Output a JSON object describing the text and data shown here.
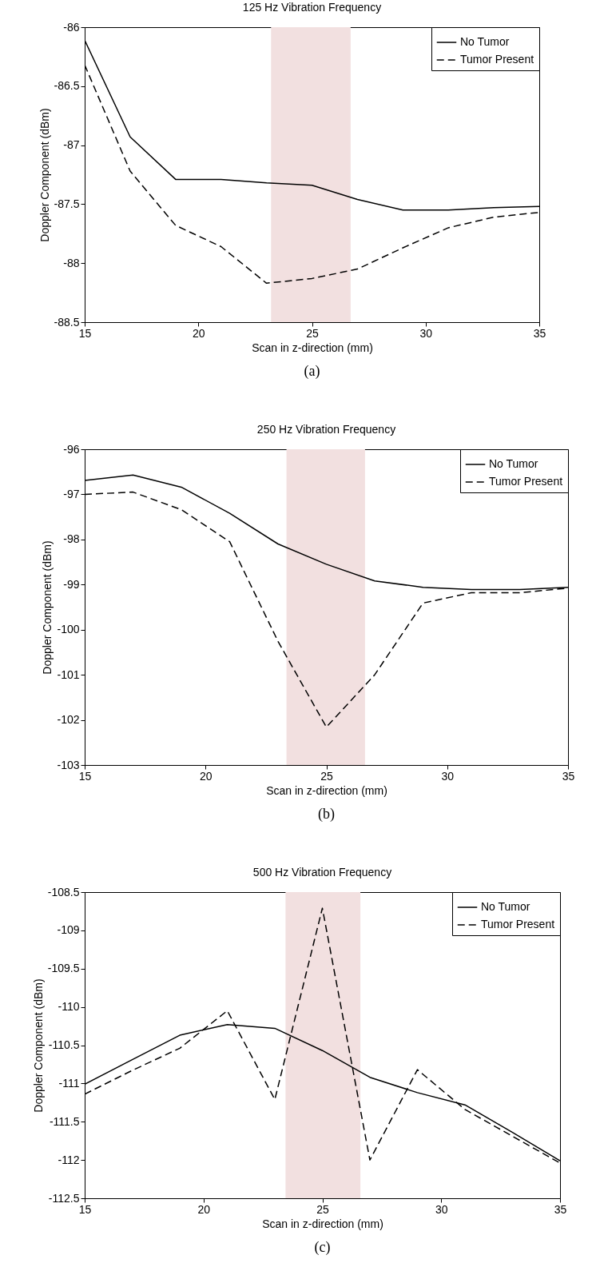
{
  "chart_data": [
    {
      "type": "line",
      "title": "125 Hz Vibration Frequency",
      "xlabel": "Scan in z-direction (mm)",
      "ylabel": "Doppler Component (dBm)",
      "x": [
        15,
        17,
        19,
        21,
        23,
        25,
        27,
        29,
        31,
        33,
        35
      ],
      "xlim": [
        15,
        35
      ],
      "xticks": [
        15,
        20,
        25,
        30,
        35
      ],
      "ylim": [
        -88.5,
        -86
      ],
      "yticks": [
        -88.5,
        -88,
        -87.5,
        -87,
        -86.5,
        -86
      ],
      "legend": "top right",
      "annotations": [
        "(a)"
      ],
      "bands": [
        {
          "axis": "x",
          "from": 23.2,
          "to": 26.7,
          "color": "#f2e0e0"
        }
      ],
      "series": [
        {
          "name": "No Tumor",
          "color": "#000000",
          "line_style": "solid",
          "values": [
            -86.11,
            -86.93,
            -87.29,
            -87.29,
            -87.32,
            -87.34,
            -87.46,
            -87.55,
            -87.55,
            -87.53,
            -87.52
          ]
        },
        {
          "name": "Tumor Present",
          "color": "#000000",
          "line_style": "dashed",
          "values": [
            -86.32,
            -87.22,
            -87.68,
            -87.86,
            -88.17,
            -88.13,
            -88.05,
            -87.87,
            -87.7,
            -87.61,
            -87.57
          ]
        }
      ]
    },
    {
      "type": "line",
      "title": "250 Hz Vibration Frequency",
      "xlabel": "Scan in z-direction (mm)",
      "ylabel": "Doppler Component (dBm)",
      "x": [
        15,
        17,
        19,
        21,
        23,
        25,
        27,
        29,
        31,
        33,
        35
      ],
      "xlim": [
        15,
        35
      ],
      "xticks": [
        15,
        20,
        25,
        30,
        35
      ],
      "ylim": [
        -103,
        -96
      ],
      "yticks": [
        -103,
        -102,
        -101,
        -100,
        -99,
        -98,
        -97,
        -96
      ],
      "legend": "top right",
      "annotations": [
        "(b)"
      ],
      "bands": [
        {
          "axis": "x",
          "from": 23.35,
          "to": 26.6,
          "color": "#f2e0e0"
        }
      ],
      "series": [
        {
          "name": "No Tumor",
          "color": "#000000",
          "line_style": "solid",
          "values": [
            -96.69,
            -96.57,
            -96.84,
            -97.42,
            -98.1,
            -98.55,
            -98.92,
            -99.06,
            -99.11,
            -99.11,
            -99.06
          ]
        },
        {
          "name": "Tumor Present",
          "color": "#000000",
          "line_style": "dashed",
          "values": [
            -97.0,
            -96.95,
            -97.34,
            -98.05,
            -100.26,
            -102.16,
            -101.0,
            -99.41,
            -99.18,
            -99.18,
            -99.08
          ]
        }
      ]
    },
    {
      "type": "line",
      "title": "500 Hz Vibration Frequency",
      "xlabel": "Scan in z-direction (mm)",
      "ylabel": "Doppler Component (dBm)",
      "x": [
        15,
        17,
        19,
        21,
        23,
        25,
        27,
        29,
        31,
        33,
        35
      ],
      "xlim": [
        15,
        35
      ],
      "xticks": [
        15,
        20,
        25,
        30,
        35
      ],
      "ylim": [
        -112.5,
        -108.5
      ],
      "yticks": [
        -112.5,
        -112,
        -111.5,
        -111,
        -110.5,
        -110,
        -109.5,
        -109,
        -108.5
      ],
      "legend": "top right",
      "annotations": [
        "(c)"
      ],
      "bands": [
        {
          "axis": "x",
          "from": 23.45,
          "to": 26.6,
          "color": "#f2e0e0"
        }
      ],
      "series": [
        {
          "name": "No Tumor",
          "color": "#000000",
          "line_style": "solid",
          "values": [
            -111.01,
            -110.69,
            -110.37,
            -110.23,
            -110.28,
            -110.57,
            -110.92,
            -111.12,
            -111.28,
            -111.64,
            -112.01
          ]
        },
        {
          "name": "Tumor Present",
          "color": "#000000",
          "line_style": "dashed",
          "values": [
            -111.14,
            -110.83,
            -110.54,
            -110.05,
            -111.21,
            -108.71,
            -112.0,
            -110.82,
            -111.34,
            -111.69,
            -112.04
          ]
        }
      ]
    }
  ]
}
